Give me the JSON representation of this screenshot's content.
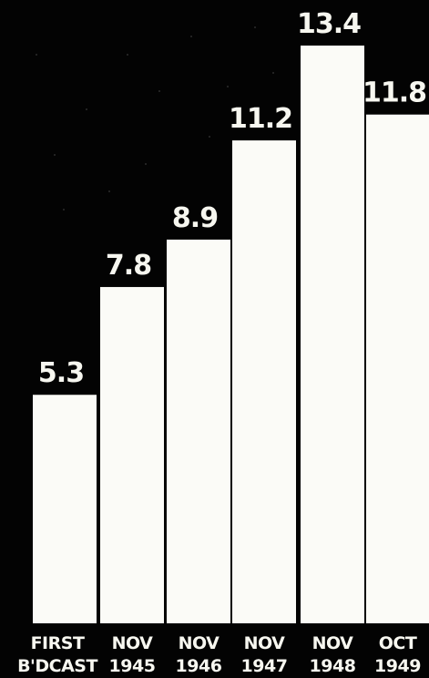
{
  "chart_data": {
    "type": "bar",
    "categories": [
      {
        "line1": "FIRST",
        "line2": "B'DCAST"
      },
      {
        "line1": "NOV",
        "line2": "1945"
      },
      {
        "line1": "NOV",
        "line2": "1946"
      },
      {
        "line1": "NOV",
        "line2": "1947"
      },
      {
        "line1": "NOV",
        "line2": "1948"
      },
      {
        "line1": "OCT",
        "line2": "1949"
      }
    ],
    "values": [
      5.3,
      7.8,
      8.9,
      11.2,
      13.4,
      11.8
    ],
    "data_labels": [
      "5.3",
      "7.8",
      "8.9",
      "11.2",
      "13.4",
      "11.8"
    ],
    "title": "",
    "xlabel": "",
    "ylabel": "",
    "ylim": [
      0,
      13.4
    ],
    "grid": false,
    "legend": "none",
    "colors": {
      "background": "#030303",
      "bar": "#fbfbf7",
      "text": "#f7f7f0"
    }
  }
}
